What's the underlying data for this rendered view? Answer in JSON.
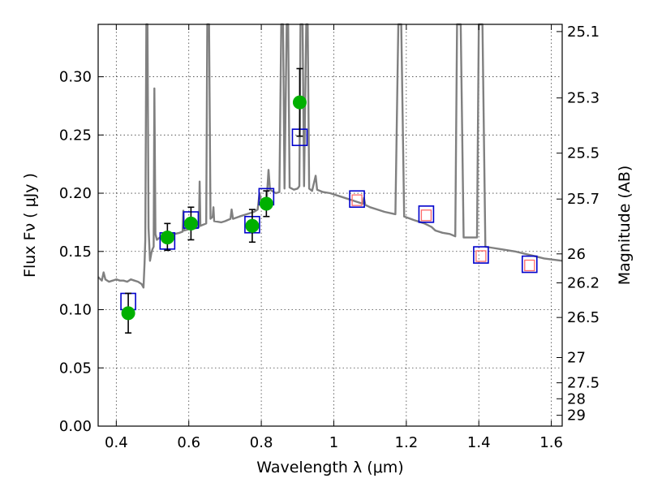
{
  "chart_data": {
    "type": "scatter",
    "xlabel": "Wavelength  λ (μm)",
    "ylabel": "Flux  Fν  ( μJy )",
    "y2label": "Magnitude (AB)",
    "xlim": [
      0.35,
      1.63
    ],
    "ylim": [
      0.0,
      0.345
    ],
    "x_ticks": [
      0.4,
      0.6,
      0.8,
      1.0,
      1.2,
      1.4,
      1.6
    ],
    "x_tick_labels": [
      "0.4",
      "0.6",
      "0.8",
      "1",
      "1.2",
      "1.4",
      "1.6"
    ],
    "y_ticks": [
      0.0,
      0.05,
      0.1,
      0.15,
      0.2,
      0.25,
      0.3
    ],
    "y_tick_labels": [
      "0.00",
      "0.05",
      "0.10",
      "0.15",
      "0.20",
      "0.25",
      "0.30"
    ],
    "right_axis_ticks": [
      {
        "label": "25.1",
        "flux": 0.3388
      },
      {
        "label": "25.3",
        "flux": 0.2818
      },
      {
        "label": "25.5",
        "flux": 0.2344
      },
      {
        "label": "25.7",
        "flux": 0.195
      },
      {
        "label": "26",
        "flux": 0.1479
      },
      {
        "label": "26.2",
        "flux": 0.123
      },
      {
        "label": "26.5",
        "flux": 0.0933
      },
      {
        "label": "27",
        "flux": 0.0589
      },
      {
        "label": "27.5",
        "flux": 0.0372
      },
      {
        "label": "28",
        "flux": 0.0235
      },
      {
        "label": "29",
        "flux": 0.0093
      }
    ],
    "grid": true,
    "colors": {
      "model": "#808080",
      "observed": "#00b000",
      "model_box": "#0000cc",
      "predicted_box": "#ff6a6a",
      "errorbar": "#000000"
    },
    "model_spectrum": [
      [
        0.35,
        0.128
      ],
      [
        0.36,
        0.125
      ],
      [
        0.365,
        0.132
      ],
      [
        0.37,
        0.126
      ],
      [
        0.38,
        0.124
      ],
      [
        0.39,
        0.125
      ],
      [
        0.4,
        0.126
      ],
      [
        0.41,
        0.125
      ],
      [
        0.42,
        0.125
      ],
      [
        0.43,
        0.124
      ],
      [
        0.44,
        0.126
      ],
      [
        0.45,
        0.125
      ],
      [
        0.46,
        0.124
      ],
      [
        0.47,
        0.122
      ],
      [
        0.475,
        0.119
      ],
      [
        0.478,
        0.14
      ],
      [
        0.48,
        0.16
      ],
      [
        0.483,
        0.345
      ],
      [
        0.486,
        0.345
      ],
      [
        0.489,
        0.17
      ],
      [
        0.493,
        0.142
      ],
      [
        0.497,
        0.149
      ],
      [
        0.5,
        0.152
      ],
      [
        0.503,
        0.154
      ],
      [
        0.505,
        0.29
      ],
      [
        0.508,
        0.165
      ],
      [
        0.512,
        0.16
      ],
      [
        0.52,
        0.162
      ],
      [
        0.53,
        0.163
      ],
      [
        0.545,
        0.164
      ],
      [
        0.56,
        0.165
      ],
      [
        0.575,
        0.166
      ],
      [
        0.583,
        0.167
      ],
      [
        0.585,
        0.185
      ],
      [
        0.587,
        0.168
      ],
      [
        0.6,
        0.169
      ],
      [
        0.62,
        0.17
      ],
      [
        0.628,
        0.171
      ],
      [
        0.63,
        0.21
      ],
      [
        0.632,
        0.172
      ],
      [
        0.64,
        0.173
      ],
      [
        0.648,
        0.174
      ],
      [
        0.651,
        0.345
      ],
      [
        0.656,
        0.345
      ],
      [
        0.66,
        0.178
      ],
      [
        0.666,
        0.18
      ],
      [
        0.668,
        0.188
      ],
      [
        0.67,
        0.176
      ],
      [
        0.69,
        0.175
      ],
      [
        0.7,
        0.176
      ],
      [
        0.715,
        0.178
      ],
      [
        0.718,
        0.186
      ],
      [
        0.722,
        0.178
      ],
      [
        0.74,
        0.18
      ],
      [
        0.76,
        0.182
      ],
      [
        0.78,
        0.184
      ],
      [
        0.79,
        0.186
      ],
      [
        0.795,
        0.2
      ],
      [
        0.8,
        0.193
      ],
      [
        0.805,
        0.19
      ],
      [
        0.81,
        0.192
      ],
      [
        0.815,
        0.195
      ],
      [
        0.82,
        0.22
      ],
      [
        0.824,
        0.203
      ],
      [
        0.84,
        0.2
      ],
      [
        0.85,
        0.201
      ],
      [
        0.855,
        0.345
      ],
      [
        0.86,
        0.345
      ],
      [
        0.864,
        0.204
      ],
      [
        0.87,
        0.345
      ],
      [
        0.874,
        0.345
      ],
      [
        0.878,
        0.205
      ],
      [
        0.89,
        0.203
      ],
      [
        0.9,
        0.204
      ],
      [
        0.905,
        0.206
      ],
      [
        0.908,
        0.345
      ],
      [
        0.914,
        0.345
      ],
      [
        0.918,
        0.206
      ],
      [
        0.924,
        0.345
      ],
      [
        0.928,
        0.345
      ],
      [
        0.932,
        0.204
      ],
      [
        0.94,
        0.202
      ],
      [
        0.95,
        0.215
      ],
      [
        0.954,
        0.203
      ],
      [
        0.97,
        0.201
      ],
      [
        0.99,
        0.2
      ],
      [
        1.0,
        0.199
      ],
      [
        1.02,
        0.197
      ],
      [
        1.04,
        0.195
      ],
      [
        1.06,
        0.193
      ],
      [
        1.08,
        0.191
      ],
      [
        1.083,
        0.196
      ],
      [
        1.087,
        0.19
      ],
      [
        1.1,
        0.188
      ],
      [
        1.12,
        0.186
      ],
      [
        1.14,
        0.184
      ],
      [
        1.17,
        0.182
      ],
      [
        1.178,
        0.345
      ],
      [
        1.186,
        0.345
      ],
      [
        1.194,
        0.18
      ],
      [
        1.22,
        0.177
      ],
      [
        1.25,
        0.174
      ],
      [
        1.27,
        0.171
      ],
      [
        1.28,
        0.168
      ],
      [
        1.3,
        0.166
      ],
      [
        1.32,
        0.165
      ],
      [
        1.335,
        0.163
      ],
      [
        1.34,
        0.345
      ],
      [
        1.35,
        0.345
      ],
      [
        1.358,
        0.162
      ],
      [
        1.38,
        0.162
      ],
      [
        1.395,
        0.162
      ],
      [
        1.4,
        0.345
      ],
      [
        1.41,
        0.345
      ],
      [
        1.418,
        0.154
      ],
      [
        1.44,
        0.153
      ],
      [
        1.46,
        0.152
      ],
      [
        1.5,
        0.15
      ],
      [
        1.54,
        0.147
      ],
      [
        1.58,
        0.144
      ],
      [
        1.63,
        0.142
      ]
    ],
    "observed": [
      {
        "x": 0.433,
        "y": 0.097,
        "yerr_low": 0.08,
        "yerr_high": 0.114
      },
      {
        "x": 0.541,
        "y": 0.162,
        "yerr_low": 0.151,
        "yerr_high": 0.174
      },
      {
        "x": 0.606,
        "y": 0.174,
        "yerr_low": 0.16,
        "yerr_high": 0.188
      },
      {
        "x": 0.775,
        "y": 0.172,
        "yerr_low": 0.158,
        "yerr_high": 0.186
      },
      {
        "x": 0.814,
        "y": 0.191,
        "yerr_low": 0.18,
        "yerr_high": 0.202
      },
      {
        "x": 0.906,
        "y": 0.278,
        "yerr_low": 0.249,
        "yerr_high": 0.307
      }
    ],
    "model_boxes": [
      {
        "x": 0.433,
        "y": 0.107
      },
      {
        "x": 0.541,
        "y": 0.159
      },
      {
        "x": 0.606,
        "y": 0.177
      },
      {
        "x": 0.775,
        "y": 0.173
      },
      {
        "x": 0.814,
        "y": 0.197
      },
      {
        "x": 0.906,
        "y": 0.248
      },
      {
        "x": 1.064,
        "y": 0.195
      },
      {
        "x": 1.255,
        "y": 0.182
      },
      {
        "x": 1.406,
        "y": 0.147
      },
      {
        "x": 1.54,
        "y": 0.139
      }
    ],
    "predicted_boxes": [
      {
        "x": 1.064,
        "y": 0.194
      },
      {
        "x": 1.255,
        "y": 0.181
      },
      {
        "x": 1.406,
        "y": 0.146
      },
      {
        "x": 1.54,
        "y": 0.138
      }
    ]
  }
}
